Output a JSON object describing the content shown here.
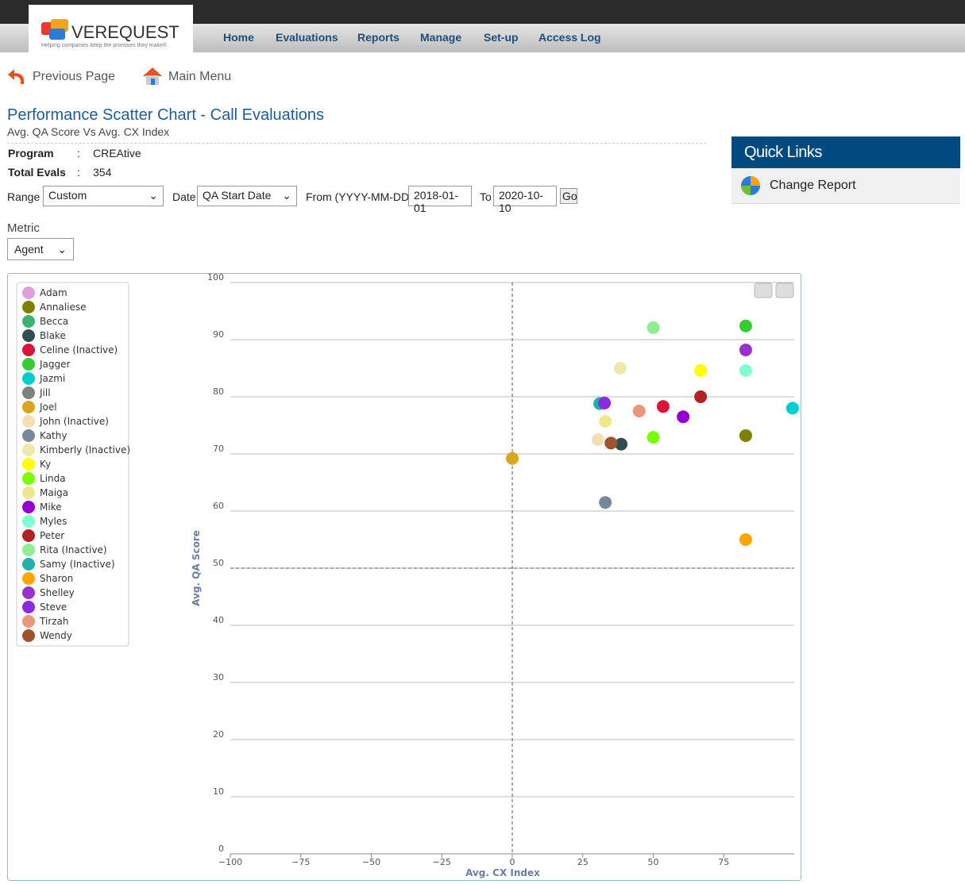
{
  "header": {
    "logo": "VEREQUEST",
    "tagline": "Helping companies keep the promises they make®",
    "nav": [
      "Home",
      "Evaluations",
      "Reports",
      "Manage",
      "Set-up",
      "Access Log"
    ]
  },
  "links": [
    "Previous Page",
    "Main Menu"
  ],
  "report": {
    "title": "Performance Scatter Chart - Call Evaluations",
    "subtitle": "Avg. QA Score Vs Avg. CX Index",
    "fields": [
      {
        "label": "Program",
        "value": "CREAtive"
      },
      {
        "label": "Total Evals",
        "value": "354"
      }
    ],
    "range_label": "Range",
    "range": "Custom",
    "date_label": "Date",
    "date": "QA Start Date",
    "from_label": "From (YYYY-MM-DD)",
    "from": "2018-01-01",
    "to_label": "To",
    "to": "2020-10-10",
    "go": "Go",
    "metric_label": "Metric",
    "metric": "Agent"
  },
  "quick_links": {
    "title": "Quick Links",
    "items": [
      "Change Report"
    ]
  },
  "chart_data": {
    "type": "scatter",
    "x_label": "Avg. CX Index",
    "y_label": "Avg. QA Score",
    "xlim": [
      -100,
      100
    ],
    "ylim": [
      0,
      100
    ],
    "xticks": [
      {
        "value": -100,
        "label": "−100"
      },
      {
        "value": -75,
        "label": "−75"
      },
      {
        "value": -50,
        "label": "−50"
      },
      {
        "value": -25,
        "label": "−25"
      },
      0,
      25,
      50,
      75
    ],
    "yticks": [
      0,
      10,
      20,
      30,
      40,
      50,
      60,
      70,
      80,
      90,
      100
    ],
    "grid": true,
    "crosshair": {
      "x": 0,
      "y": 50
    },
    "legend": "left",
    "series": [
      {
        "name": "Adam",
        "color": "#dda0dd",
        "x": null,
        "y": null
      },
      {
        "name": "Annaliese",
        "color": "#808000",
        "x": 82.8,
        "y": 73.2
      },
      {
        "name": "Becca",
        "color": "#3cb371",
        "x": null,
        "y": null
      },
      {
        "name": "Blake",
        "color": "#2f4f4f",
        "x": 38.6,
        "y": 71.7
      },
      {
        "name": "Celine (Inactive)",
        "color": "#dc143c",
        "x": 53.5,
        "y": 78.3
      },
      {
        "name": "Jagger",
        "color": "#32cd32",
        "x": 82.8,
        "y": 92.4
      },
      {
        "name": "Jazmi",
        "color": "#00ced1",
        "x": 99.4,
        "y": 78
      },
      {
        "name": "Jill",
        "color": "#808080",
        "x": null,
        "y": null
      },
      {
        "name": "Joel",
        "color": "#daa520",
        "x": 0,
        "y": 69.2
      },
      {
        "name": "John (Inactive)",
        "color": "#f5deb3",
        "x": 30.4,
        "y": 72.5
      },
      {
        "name": "Kathy",
        "color": "#778899",
        "x": 33,
        "y": 61.5
      },
      {
        "name": "Kimberly (Inactive)",
        "color": "#eee8aa",
        "x": 38.3,
        "y": 85
      },
      {
        "name": "Ky",
        "color": "#ffff00",
        "x": 66.8,
        "y": 84.6
      },
      {
        "name": "Linda",
        "color": "#7cfc00",
        "x": 50,
        "y": 72.9
      },
      {
        "name": "Maiga",
        "color": "#f0e68c",
        "x": 33,
        "y": 75.7
      },
      {
        "name": "Mike",
        "color": "#9400d3",
        "x": 60.6,
        "y": 76.5
      },
      {
        "name": "Myles",
        "color": "#7fffd4",
        "x": 82.8,
        "y": 84.6
      },
      {
        "name": "Peter",
        "color": "#b22222",
        "x": 66.8,
        "y": 80
      },
      {
        "name": "Rita (Inactive)",
        "color": "#90ee90",
        "x": 50,
        "y": 92.1
      },
      {
        "name": "Samy (Inactive)",
        "color": "#20b2aa",
        "x": 31,
        "y": 78.8
      },
      {
        "name": "Sharon",
        "color": "#ffa500",
        "x": 82.8,
        "y": 55
      },
      {
        "name": "Shelley",
        "color": "#9932cc",
        "x": 82.8,
        "y": 88.2
      },
      {
        "name": "Steve",
        "color": "#8a2be2",
        "x": 32.7,
        "y": 78.9
      },
      {
        "name": "Tirzah",
        "color": "#e9967a",
        "x": 45,
        "y": 77.5
      },
      {
        "name": "Wendy",
        "color": "#a0522d",
        "x": 35,
        "y": 71.9
      }
    ]
  }
}
